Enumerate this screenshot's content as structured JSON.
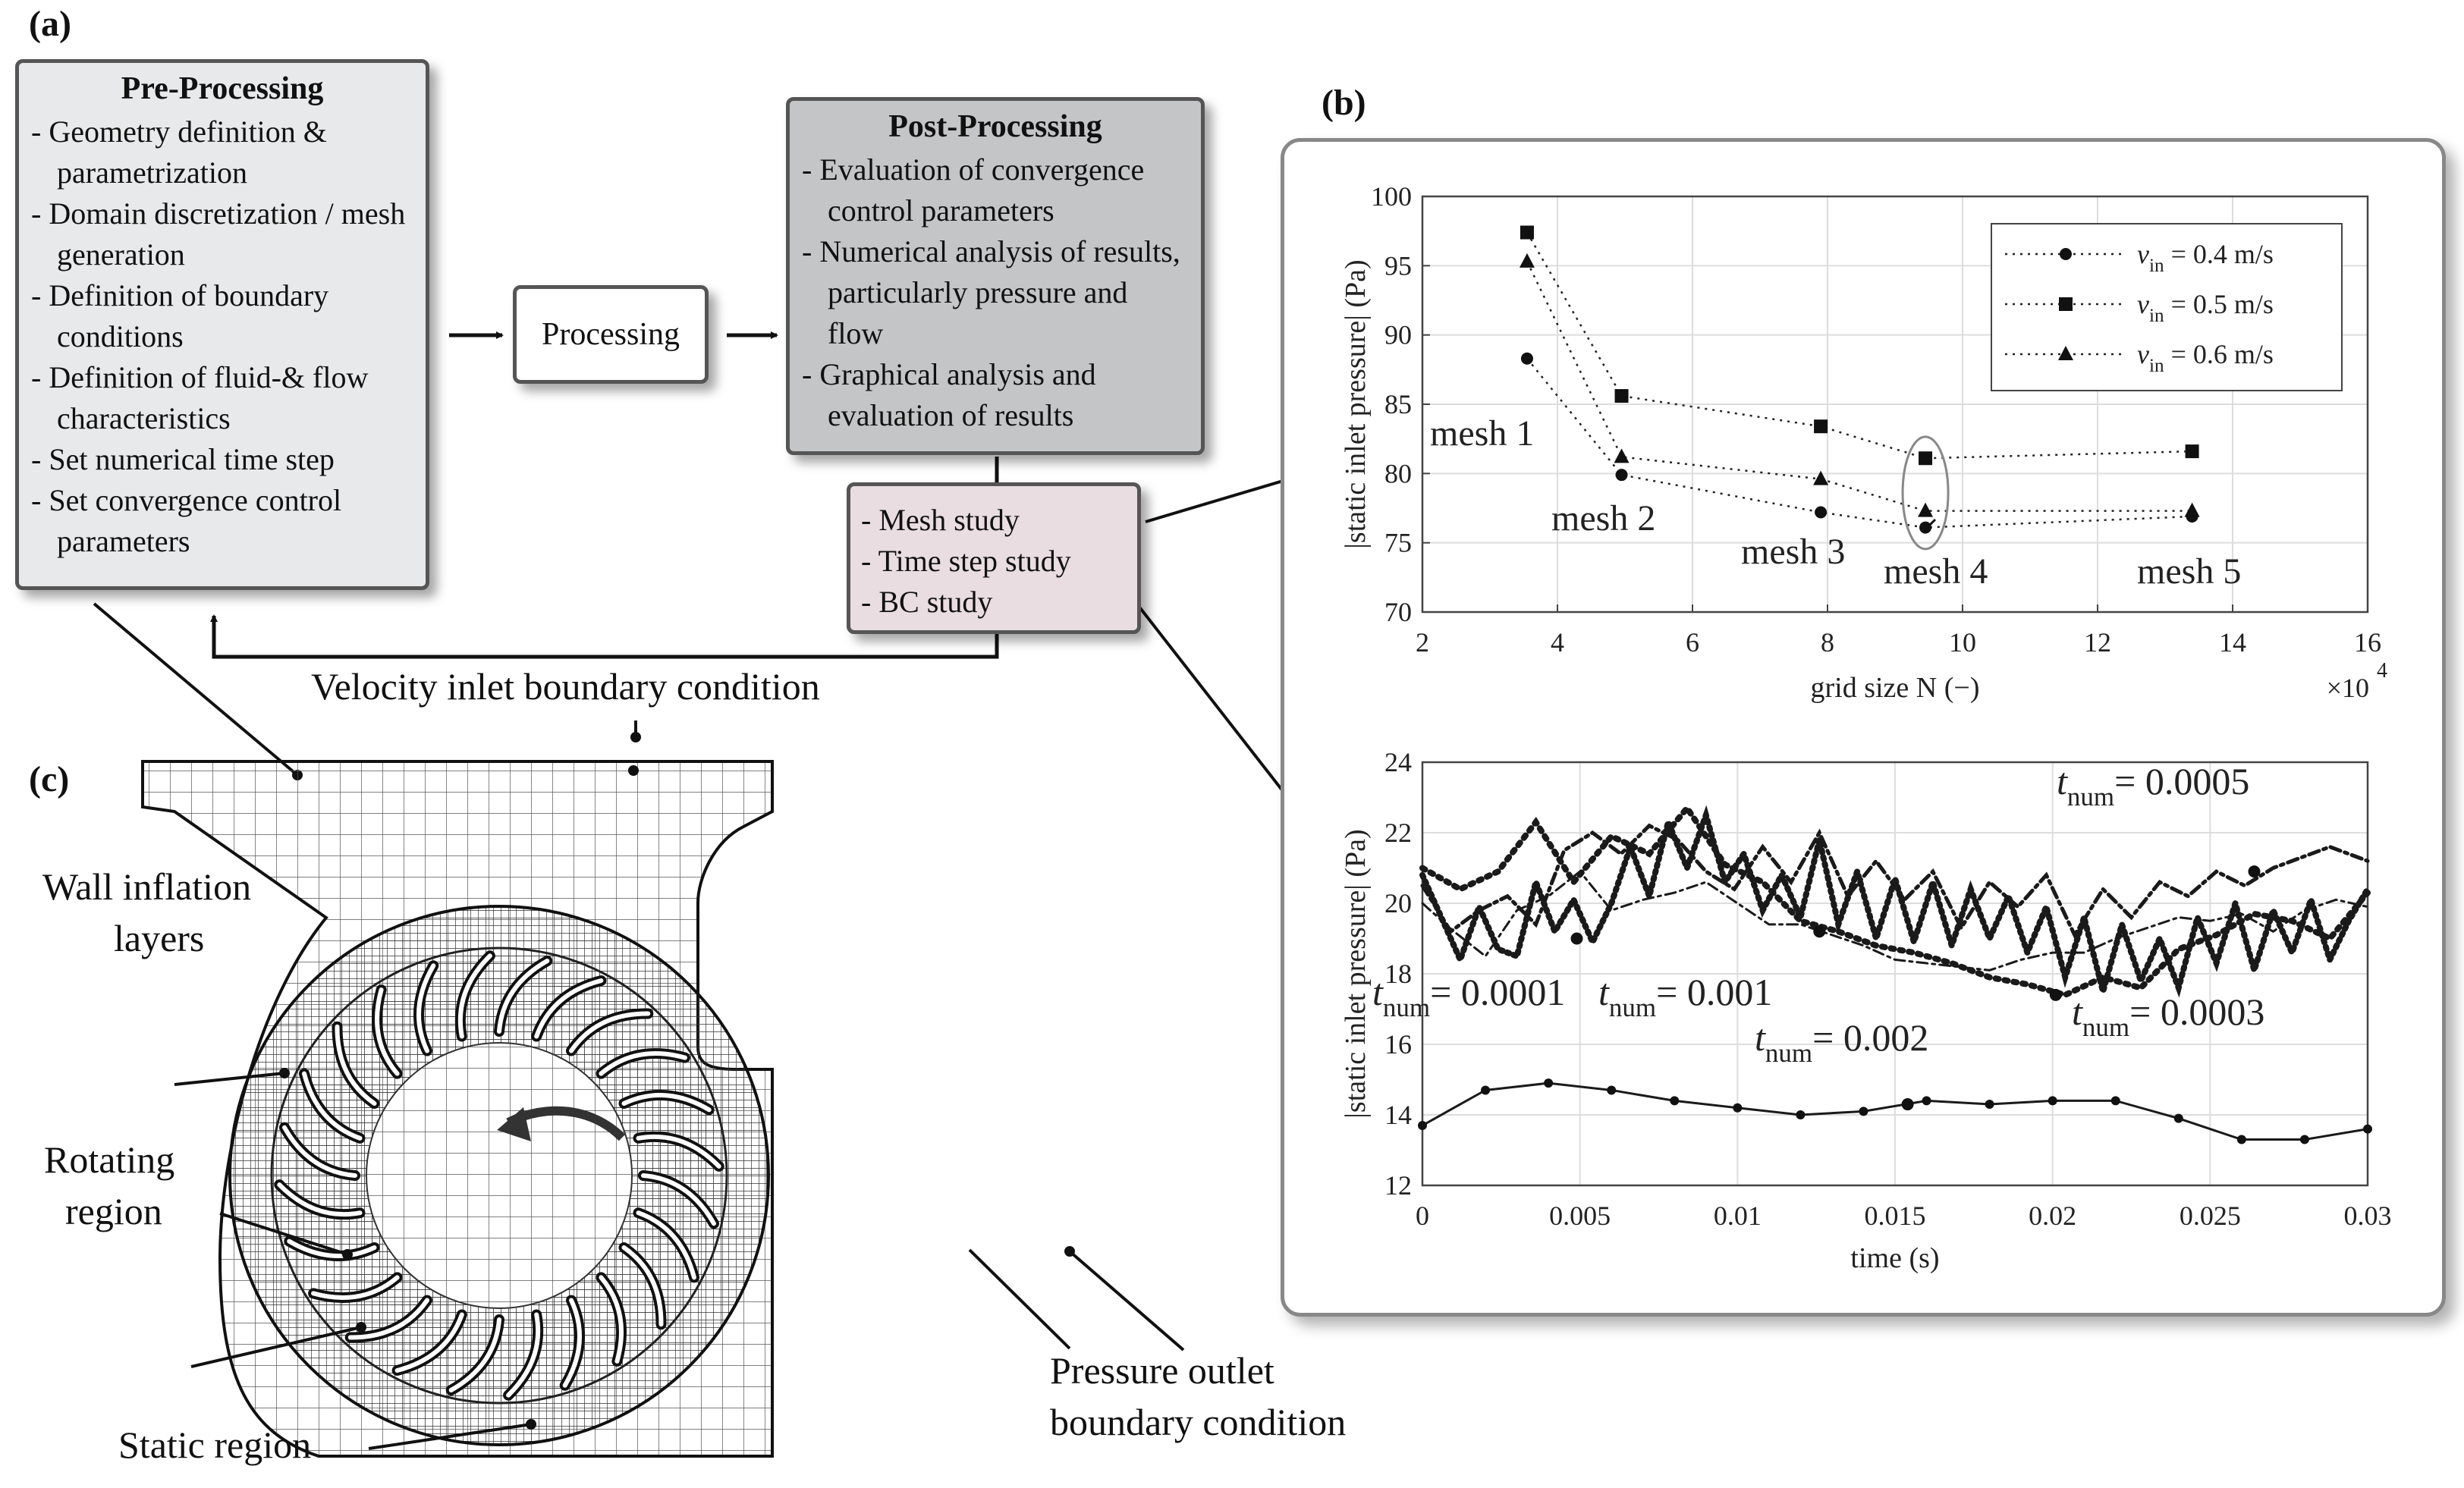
{
  "panels": {
    "a": "(a)",
    "b": "(b)",
    "c": "(c)"
  },
  "preprocessing": {
    "title": "Pre-Processing",
    "items": [
      "Geometry definition & parametrization",
      "Domain discretization / mesh generation",
      "Definition of boundary conditions",
      "Definition of fluid-& flow characteristics",
      "Set numerical time step",
      "Set convergence control parameters"
    ]
  },
  "processing": {
    "label": "Processing"
  },
  "postprocessing": {
    "title": "Post-Processing",
    "items": [
      "Evaluation of convergence control parameters",
      "Numerical analysis of results, particularly pressure and flow",
      "Graphical analysis and evaluation of results"
    ]
  },
  "studies": {
    "items": [
      "Mesh study",
      "Time step study",
      "BC study"
    ]
  },
  "mesh_annotations": {
    "velocity_inlet": "Velocity inlet boundary condition",
    "wall_inflation": [
      "Wall inflation",
      "layers"
    ],
    "rotating_region": [
      "Rotating",
      "region"
    ],
    "static_region": "Static region",
    "pressure_outlet": [
      "Pressure outlet",
      "boundary condition"
    ]
  },
  "chart_data": [
    {
      "type": "line",
      "title": "",
      "xlabel": "grid size  N (−)",
      "x_multiplier": "×10",
      "x_multiplier_exp": "4",
      "ylabel": "|static inlet pressure| (Pa)",
      "xlim": [
        2,
        16
      ],
      "ylim": [
        70,
        100
      ],
      "xticks": [
        2,
        4,
        6,
        8,
        10,
        12,
        14,
        16
      ],
      "yticks": [
        70,
        75,
        80,
        85,
        90,
        95,
        100
      ],
      "x": [
        3.55,
        4.95,
        7.9,
        9.45,
        13.4
      ],
      "series": [
        {
          "name": "v",
          "sub": "in",
          "suffix": " = 0.4 m/s",
          "marker": "circle",
          "values": [
            88.3,
            79.9,
            77.2,
            76.1,
            76.9
          ]
        },
        {
          "name": "v",
          "sub": "in",
          "suffix": " = 0.5 m/s",
          "marker": "square",
          "values": [
            97.4,
            85.6,
            83.4,
            81.1,
            81.6
          ]
        },
        {
          "name": "v",
          "sub": "in",
          "suffix": " = 0.6 m/s",
          "marker": "triangle",
          "values": [
            95.3,
            81.2,
            79.6,
            77.3,
            77.3
          ]
        }
      ],
      "annotations": [
        "mesh 1",
        "mesh 2",
        "mesh 3",
        "mesh 4",
        "mesh 5"
      ],
      "legend": "top-right"
    },
    {
      "type": "line",
      "title": "",
      "xlabel": "time (s)",
      "ylabel": "|static inlet pressure| (Pa)",
      "xlim": [
        0,
        0.03
      ],
      "ylim": [
        12,
        24
      ],
      "xticks": [
        0,
        0.005,
        0.01,
        0.015,
        0.02,
        0.025,
        0.03
      ],
      "xtick_labels": [
        "0",
        "0.005",
        "0.01",
        "0.015",
        "0.02",
        "0.025",
        "0.03"
      ],
      "yticks": [
        12,
        14,
        16,
        18,
        20,
        22,
        24
      ],
      "series": [
        {
          "name": "t",
          "sub": "num",
          "suffix": "= 0.002",
          "x": [
            0,
            0.002,
            0.004,
            0.006,
            0.008,
            0.01,
            0.012,
            0.014,
            0.016,
            0.018,
            0.02,
            0.022,
            0.024,
            0.026,
            0.028,
            0.03
          ],
          "values": [
            13.7,
            14.7,
            14.9,
            14.7,
            14.4,
            14.2,
            14.0,
            14.1,
            14.4,
            14.3,
            14.4,
            14.4,
            13.9,
            13.3,
            13.3,
            13.6
          ]
        },
        {
          "name": "t",
          "sub": "num",
          "suffix": "= 0.001",
          "x": [
            0,
            0.001,
            0.002,
            0.003,
            0.004,
            0.005,
            0.006,
            0.007,
            0.008,
            0.009,
            0.01,
            0.011,
            0.012,
            0.013,
            0.014,
            0.015,
            0.016,
            0.017,
            0.018,
            0.019,
            0.02,
            0.021,
            0.022,
            0.023,
            0.024,
            0.025,
            0.026,
            0.027,
            0.028,
            0.029,
            0.03
          ],
          "values": [
            20.0,
            19.2,
            18.5,
            19.8,
            20.2,
            20.9,
            19.8,
            20.1,
            20.3,
            20.6,
            20.0,
            19.4,
            19.4,
            19.1,
            18.8,
            18.4,
            18.3,
            18.2,
            18.1,
            18.4,
            18.6,
            18.6,
            19.0,
            19.3,
            19.6,
            19.5,
            19.7,
            19.2,
            19.8,
            20.1,
            19.9
          ]
        },
        {
          "name": "t",
          "sub": "num",
          "suffix": "= 0.0003",
          "x": [
            0,
            0.0012,
            0.0024,
            0.0036,
            0.0048,
            0.006,
            0.0072,
            0.0084,
            0.0096,
            0.0108,
            0.012,
            0.0132,
            0.0144,
            0.0156,
            0.0168,
            0.018,
            0.0192,
            0.0204,
            0.0216,
            0.0228,
            0.024,
            0.0252,
            0.0264,
            0.0276,
            0.0288,
            0.03
          ],
          "values": [
            21.0,
            20.4,
            20.9,
            22.3,
            20.6,
            21.9,
            21.4,
            22.7,
            21.1,
            20.6,
            19.5,
            19.2,
            18.8,
            18.6,
            18.3,
            17.9,
            17.7,
            17.4,
            17.9,
            17.6,
            18.7,
            19.1,
            19.7,
            19.5,
            19.0,
            20.3
          ]
        },
        {
          "name": "t",
          "sub": "num",
          "suffix": "= 0.0005",
          "x": [
            0,
            0.0009,
            0.0018,
            0.0027,
            0.0036,
            0.0045,
            0.0054,
            0.0063,
            0.0072,
            0.0081,
            0.009,
            0.0099,
            0.0108,
            0.0117,
            0.0126,
            0.0135,
            0.0144,
            0.0153,
            0.0162,
            0.0171,
            0.018,
            0.0189,
            0.0198,
            0.0207,
            0.0216,
            0.0225,
            0.0234,
            0.0243,
            0.0252,
            0.0261,
            0.027,
            0.0279,
            0.0288,
            0.03
          ],
          "values": [
            20.5,
            19.2,
            19.8,
            20.2,
            19.4,
            21.5,
            22.0,
            21.4,
            22.2,
            21.8,
            20.9,
            20.4,
            21.6,
            20.6,
            22.0,
            20.2,
            21.2,
            20.1,
            20.9,
            19.3,
            20.6,
            19.9,
            20.8,
            19.1,
            20.4,
            19.6,
            20.6,
            20.2,
            20.9,
            20.5,
            21.0,
            21.3,
            21.6,
            21.2
          ]
        },
        {
          "name": "t",
          "sub": "num",
          "suffix": "= 0.0001",
          "x": [
            0,
            0.0006,
            0.0012,
            0.0018,
            0.0024,
            0.003,
            0.0036,
            0.0042,
            0.0048,
            0.0054,
            0.006,
            0.0066,
            0.0072,
            0.0078,
            0.0084,
            0.009,
            0.0096,
            0.0102,
            0.0108,
            0.0114,
            0.012,
            0.0126,
            0.0132,
            0.0138,
            0.0144,
            0.015,
            0.0156,
            0.0162,
            0.0168,
            0.0174,
            0.018,
            0.0186,
            0.0192,
            0.0198,
            0.0204,
            0.021,
            0.0216,
            0.0222,
            0.0228,
            0.0234,
            0.024,
            0.0246,
            0.0252,
            0.0258,
            0.0264,
            0.027,
            0.0276,
            0.0282,
            0.0288,
            0.0294,
            0.03
          ],
          "values": [
            20.8,
            19.6,
            18.4,
            19.9,
            18.7,
            18.5,
            20.6,
            19.2,
            20.1,
            18.9,
            20.0,
            21.6,
            20.2,
            22.3,
            21.0,
            22.5,
            20.6,
            21.4,
            19.8,
            20.8,
            19.6,
            21.8,
            19.4,
            20.9,
            19.0,
            20.7,
            18.9,
            20.6,
            18.8,
            20.4,
            19.0,
            20.2,
            18.6,
            19.9,
            17.9,
            19.6,
            17.5,
            19.4,
            17.8,
            19.0,
            17.6,
            19.6,
            18.3,
            20.0,
            18.1,
            19.8,
            18.6,
            20.1,
            18.4,
            19.5,
            20.4
          ]
        }
      ],
      "legend": "inline labels"
    }
  ]
}
